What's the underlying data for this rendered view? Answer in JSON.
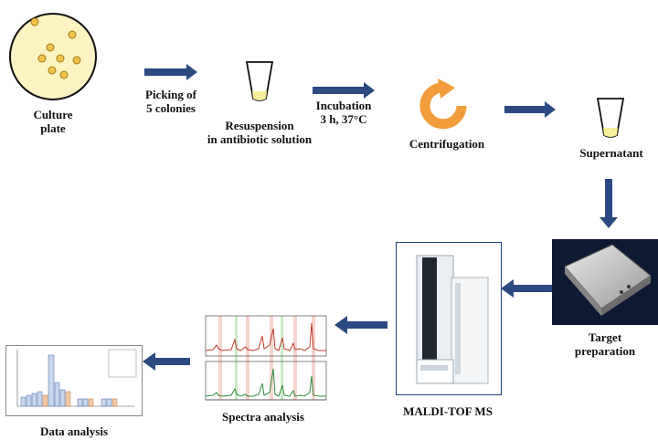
{
  "steps": {
    "culture_plate": "Culture\nplate",
    "picking": "Picking of\n5 colonies",
    "resuspension": "Resuspension\nin antibiotic solution",
    "incubation": "Incubation\n3 h, 37°C",
    "centrifugation": "Centrifugation",
    "supernatant": "Supernatant",
    "target_preparation": "Target\npreparation",
    "maldi": "MALDI-TOF MS",
    "spectra_analysis": "Spectra analysis",
    "data_analysis": "Data analysis"
  },
  "colors": {
    "arrow": "#2b4a82",
    "plate_fill": "#fbf3c2",
    "colony": "#f1c24a",
    "centrifuge": "#f39c3a",
    "spectrum_red": "#c0392b",
    "spectrum_green": "#2e8b3a"
  },
  "icons": {
    "culture_plate": "petri-dish-icon",
    "tube": "tube-icon",
    "centrifuge": "circular-arrow-icon",
    "target": "target-plate-icon",
    "instrument": "mass-spectrometer-icon"
  }
}
